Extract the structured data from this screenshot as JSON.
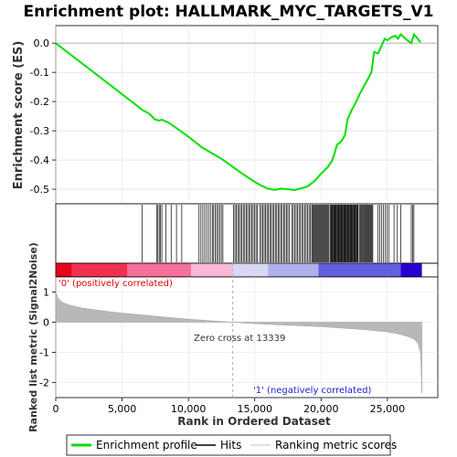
{
  "chart_data": {
    "type": "line",
    "title": "Enrichment plot: HALLMARK_MYC_TARGETS_V1",
    "es_panel": {
      "ylabel": "Enrichment score (ES)",
      "ylim": [
        -0.55,
        0.06
      ],
      "yticks": [
        0.0,
        -0.1,
        -0.2,
        -0.3,
        -0.4,
        -0.5
      ],
      "ytick_labels": [
        "0.0",
        "-0.1",
        "-0.2",
        "-0.3",
        "-0.4",
        "-0.5"
      ],
      "series_name": "Enrichment profile",
      "color": "#00e000",
      "x": [
        0,
        1000,
        2000,
        3000,
        4000,
        5000,
        6000,
        6500,
        7000,
        7500,
        7800,
        8000,
        8500,
        9000,
        10000,
        11000,
        12000,
        12500,
        13000,
        14000,
        15000,
        15500,
        16000,
        16500,
        17000,
        17500,
        18000,
        18500,
        19000,
        19500,
        20000,
        20500,
        20800,
        21000,
        21200,
        21500,
        21800,
        22000,
        22300,
        22600,
        22900,
        23200,
        23500,
        23800,
        24000,
        24300,
        24600,
        24800,
        25000,
        25300,
        25600,
        25800,
        26000,
        26500,
        26800,
        27000,
        27200,
        27500
      ],
      "y": [
        0.0,
        -0.035,
        -0.07,
        -0.105,
        -0.14,
        -0.175,
        -0.21,
        -0.228,
        -0.24,
        -0.262,
        -0.265,
        -0.262,
        -0.272,
        -0.288,
        -0.32,
        -0.356,
        -0.383,
        -0.396,
        -0.412,
        -0.445,
        -0.475,
        -0.488,
        -0.498,
        -0.502,
        -0.498,
        -0.5,
        -0.503,
        -0.497,
        -0.49,
        -0.472,
        -0.447,
        -0.425,
        -0.405,
        -0.38,
        -0.348,
        -0.338,
        -0.315,
        -0.26,
        -0.23,
        -0.205,
        -0.175,
        -0.15,
        -0.125,
        -0.1,
        -0.03,
        -0.035,
        -0.005,
        0.015,
        0.01,
        0.02,
        0.025,
        0.015,
        0.03,
        0.01,
        0.0,
        0.03,
        0.02,
        0.003
      ]
    },
    "hits": {
      "label": "Hits",
      "clusters": [
        {
          "x0": 6500,
          "x1": 6500,
          "n": 1
        },
        {
          "x0": 7600,
          "x1": 8000,
          "n": 5
        },
        {
          "x0": 8300,
          "x1": 9500,
          "n": 4
        },
        {
          "x0": 10800,
          "x1": 11800,
          "n": 8
        },
        {
          "x0": 11900,
          "x1": 12600,
          "n": 7
        },
        {
          "x0": 13400,
          "x1": 15200,
          "n": 18
        },
        {
          "x0": 15400,
          "x1": 17600,
          "n": 22
        },
        {
          "x0": 17800,
          "x1": 19200,
          "n": 14
        },
        {
          "x0": 19300,
          "x1": 20600,
          "n": 20
        },
        {
          "x0": 20700,
          "x1": 22800,
          "n": 40
        },
        {
          "x0": 22900,
          "x1": 23900,
          "n": 16
        },
        {
          "x0": 24300,
          "x1": 25100,
          "n": 7
        },
        {
          "x0": 25500,
          "x1": 26000,
          "n": 3
        },
        {
          "x0": 26800,
          "x1": 27000,
          "n": 3
        }
      ]
    },
    "color_bar": {
      "colors": [
        {
          "x0": 0,
          "x1": 1200,
          "color": "#e8001c"
        },
        {
          "x0": 1200,
          "x1": 5400,
          "color": "#f03050"
        },
        {
          "x0": 5400,
          "x1": 10200,
          "color": "#f5709a"
        },
        {
          "x0": 10200,
          "x1": 13339,
          "color": "#f8b8d8"
        },
        {
          "x0": 13339,
          "x1": 16000,
          "color": "#d8d8f4"
        },
        {
          "x0": 16000,
          "x1": 19800,
          "color": "#b0b0ec"
        },
        {
          "x0": 19800,
          "x1": 26000,
          "color": "#6060e0"
        },
        {
          "x0": 26000,
          "x1": 27600,
          "color": "#2a00d0"
        }
      ]
    },
    "rank_panel": {
      "ylabel": "Ranked list metric (Signal2Noise)",
      "ylim": [
        -2.5,
        1.5
      ],
      "yticks": [
        1,
        0,
        -1,
        -2
      ],
      "ytick_labels": [
        "1",
        "0",
        "-1",
        "-2"
      ],
      "series_name": "Ranking metric scores",
      "color": "#aaaaaa",
      "x": [
        0,
        200,
        500,
        1000,
        2000,
        3000,
        4000,
        5000,
        6000,
        7000,
        8000,
        9000,
        10000,
        11000,
        12000,
        13339,
        14000,
        15000,
        16000,
        17000,
        18000,
        19000,
        20000,
        21000,
        22000,
        23000,
        24000,
        25000,
        25500,
        26000,
        26500,
        27000,
        27300,
        27500,
        27600
      ],
      "y": [
        1.0,
        0.78,
        0.66,
        0.57,
        0.47,
        0.41,
        0.35,
        0.3,
        0.26,
        0.22,
        0.18,
        0.14,
        0.1,
        0.07,
        0.04,
        0.0,
        -0.02,
        -0.05,
        -0.07,
        -0.09,
        -0.11,
        -0.13,
        -0.15,
        -0.18,
        -0.21,
        -0.24,
        -0.28,
        -0.32,
        -0.36,
        -0.41,
        -0.47,
        -0.56,
        -0.7,
        -1.0,
        -2.35
      ],
      "zero_cross_label": "Zero cross at 13339",
      "zero_cross_x": 13339,
      "pos_label": "'0' (positively correlated)",
      "neg_label": "'1' (negatively correlated)"
    },
    "xaxis": {
      "xlabel": "Rank in Ordered Dataset",
      "xlim": [
        0,
        28800
      ],
      "xticks": [
        0,
        5000,
        10000,
        15000,
        20000,
        25000
      ],
      "xtick_labels": [
        "0",
        "5,000",
        "10,000",
        "15,000",
        "20,000",
        "25,000"
      ]
    },
    "legend": {
      "placement": "bottom",
      "items": [
        {
          "label": "Enrichment profile",
          "color": "#00e000"
        },
        {
          "label": "Hits",
          "color": "#000000"
        },
        {
          "label": "Ranking metric scores",
          "color": "#c0c0c0"
        }
      ]
    }
  }
}
